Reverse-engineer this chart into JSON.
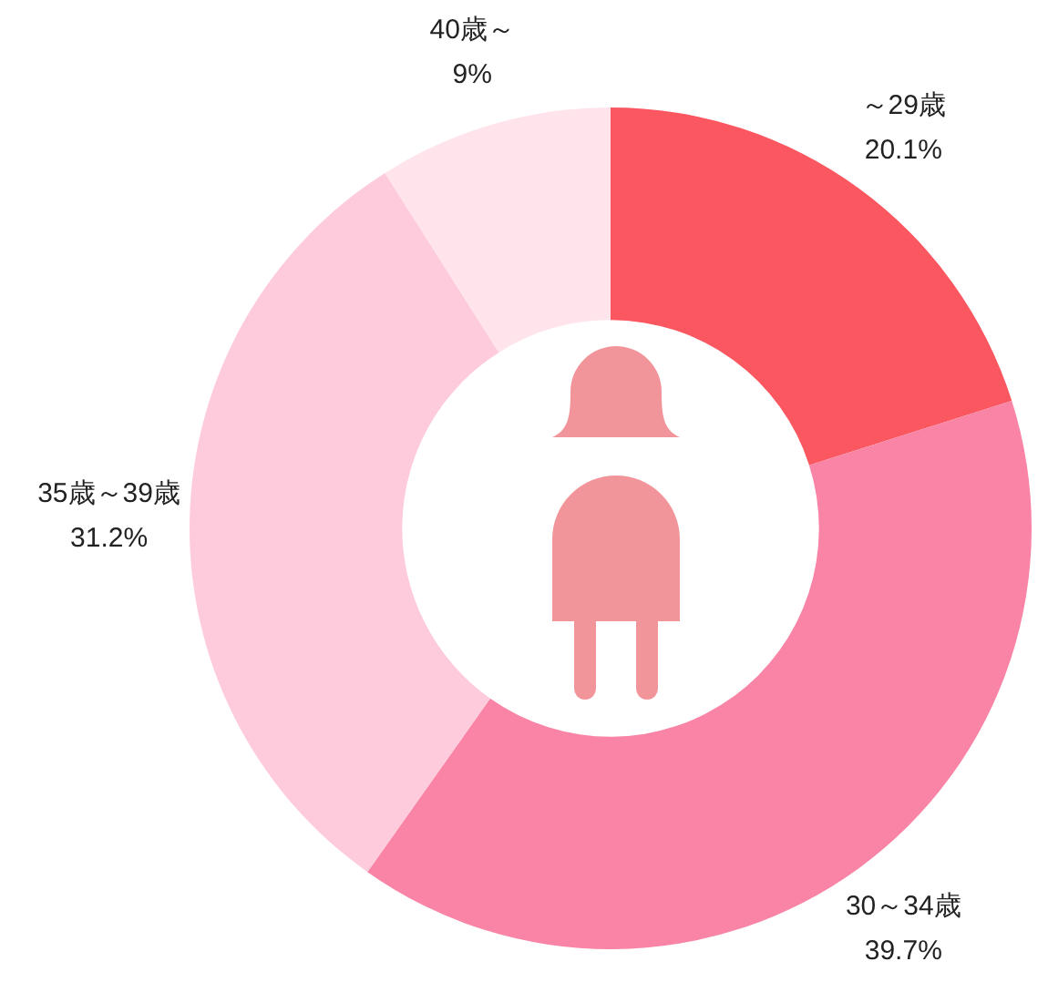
{
  "chart_data": {
    "type": "donut",
    "categories": [
      "～29歳",
      "30～34歳",
      "35歳～39歳",
      "40歳～"
    ],
    "values": [
      20.1,
      39.7,
      31.2,
      9
    ],
    "value_labels": [
      "20.1%",
      "39.7%",
      "31.2%",
      "9%"
    ],
    "colors": [
      "#fa5760",
      "#f984a5",
      "#fecbdc",
      "#ffe4ec"
    ]
  }
}
